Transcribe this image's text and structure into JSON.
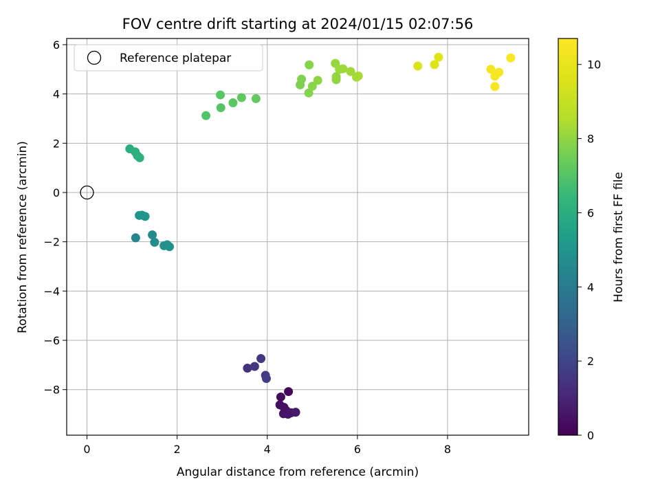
{
  "chart_data": {
    "type": "scatter",
    "title": "FOV centre drift starting at 2024/01/15 02:07:56",
    "xlabel": "Angular distance from reference (arcmin)",
    "ylabel": "Rotation from reference (arcmin)",
    "xlim": [
      -0.45,
      9.8
    ],
    "ylim": [
      -9.85,
      6.25
    ],
    "xticks": [
      0,
      2,
      4,
      6,
      8
    ],
    "yticks": [
      -8,
      -6,
      -4,
      -2,
      0,
      2,
      4,
      6
    ],
    "xtick_labels": [
      "0",
      "2",
      "4",
      "6",
      "8"
    ],
    "ytick_labels": [
      "−8",
      "−6",
      "−4",
      "−2",
      "0",
      "2",
      "4",
      "6"
    ],
    "grid": true,
    "legend": {
      "placement": "top-left",
      "entries": [
        "Reference platepar"
      ]
    },
    "reference_point": {
      "x": 0,
      "y": 0,
      "marker": "open-circle"
    },
    "colorbar": {
      "label": "Hours from first FF file",
      "colormap": "viridis",
      "range": [
        0,
        10.7
      ],
      "ticks": [
        0,
        2,
        4,
        6,
        8,
        10
      ],
      "tick_labels": [
        "0",
        "2",
        "4",
        "6",
        "8",
        "10"
      ]
    },
    "points": [
      {
        "x": 4.47,
        "y": -8.08,
        "c": 0.2
      },
      {
        "x": 4.3,
        "y": -8.3,
        "c": 0.3
      },
      {
        "x": 4.28,
        "y": -8.62,
        "c": 0.35
      },
      {
        "x": 4.37,
        "y": -8.72,
        "c": 0.4
      },
      {
        "x": 4.42,
        "y": -8.85,
        "c": 0.45
      },
      {
        "x": 4.36,
        "y": -8.98,
        "c": 0.5
      },
      {
        "x": 4.46,
        "y": -9.0,
        "c": 0.55
      },
      {
        "x": 4.53,
        "y": -8.94,
        "c": 0.6
      },
      {
        "x": 4.63,
        "y": -8.92,
        "c": 0.65
      },
      {
        "x": 3.56,
        "y": -7.13,
        "c": 1.4
      },
      {
        "x": 3.72,
        "y": -7.06,
        "c": 1.5
      },
      {
        "x": 3.86,
        "y": -6.74,
        "c": 1.6
      },
      {
        "x": 3.96,
        "y": -7.42,
        "c": 1.7
      },
      {
        "x": 3.98,
        "y": -7.55,
        "c": 1.8
      },
      {
        "x": 1.08,
        "y": -1.84,
        "c": 4.4
      },
      {
        "x": 1.45,
        "y": -1.72,
        "c": 4.6
      },
      {
        "x": 1.5,
        "y": -2.02,
        "c": 4.7
      },
      {
        "x": 1.71,
        "y": -2.16,
        "c": 4.8
      },
      {
        "x": 1.78,
        "y": -2.12,
        "c": 4.85
      },
      {
        "x": 1.83,
        "y": -2.2,
        "c": 4.9
      },
      {
        "x": 1.16,
        "y": -0.93,
        "c": 5.0
      },
      {
        "x": 1.22,
        "y": -0.92,
        "c": 5.05
      },
      {
        "x": 1.29,
        "y": -0.97,
        "c": 5.1
      },
      {
        "x": 0.95,
        "y": 1.77,
        "c": 6.0
      },
      {
        "x": 1.07,
        "y": 1.65,
        "c": 6.05
      },
      {
        "x": 1.12,
        "y": 1.49,
        "c": 6.1
      },
      {
        "x": 1.17,
        "y": 1.41,
        "c": 6.15
      },
      {
        "x": 2.64,
        "y": 3.12,
        "c": 7.0
      },
      {
        "x": 2.97,
        "y": 3.44,
        "c": 7.05
      },
      {
        "x": 2.96,
        "y": 3.96,
        "c": 7.1
      },
      {
        "x": 3.24,
        "y": 3.64,
        "c": 7.15
      },
      {
        "x": 3.43,
        "y": 3.85,
        "c": 7.2
      },
      {
        "x": 3.75,
        "y": 3.81,
        "c": 7.25
      },
      {
        "x": 4.73,
        "y": 4.37,
        "c": 7.7
      },
      {
        "x": 4.76,
        "y": 4.6,
        "c": 7.75
      },
      {
        "x": 4.92,
        "y": 4.04,
        "c": 7.8
      },
      {
        "x": 4.93,
        "y": 5.18,
        "c": 7.85
      },
      {
        "x": 5.0,
        "y": 4.31,
        "c": 7.9
      },
      {
        "x": 5.12,
        "y": 4.55,
        "c": 7.95
      },
      {
        "x": 5.53,
        "y": 4.58,
        "c": 8.0
      },
      {
        "x": 5.53,
        "y": 4.7,
        "c": 8.05
      },
      {
        "x": 5.51,
        "y": 5.24,
        "c": 8.1
      },
      {
        "x": 5.6,
        "y": 5.0,
        "c": 8.15
      },
      {
        "x": 5.68,
        "y": 5.02,
        "c": 8.2
      },
      {
        "x": 5.85,
        "y": 4.91,
        "c": 8.25
      },
      {
        "x": 5.98,
        "y": 4.68,
        "c": 8.3
      },
      {
        "x": 6.02,
        "y": 4.73,
        "c": 8.35
      },
      {
        "x": 7.34,
        "y": 5.13,
        "c": 9.6
      },
      {
        "x": 7.71,
        "y": 5.19,
        "c": 9.7
      },
      {
        "x": 7.8,
        "y": 5.49,
        "c": 9.75
      },
      {
        "x": 8.96,
        "y": 5.0,
        "c": 10.4
      },
      {
        "x": 9.05,
        "y": 4.72,
        "c": 10.45
      },
      {
        "x": 9.14,
        "y": 4.88,
        "c": 10.5
      },
      {
        "x": 9.05,
        "y": 4.3,
        "c": 10.55
      },
      {
        "x": 9.4,
        "y": 5.46,
        "c": 10.6
      }
    ]
  }
}
